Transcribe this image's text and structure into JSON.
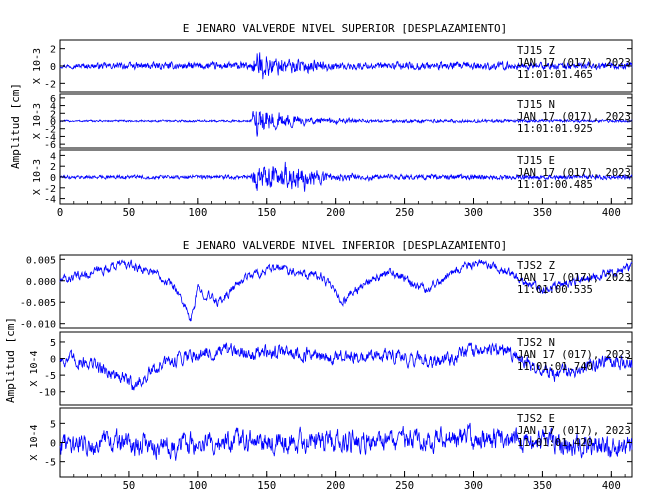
{
  "figure_top": {
    "title": "E JENARO VALVERDE NIVEL SUPERIOR [DESPLAZAMIENTO]",
    "ylabel": "Amplitud [cm]"
  },
  "figure_bottom": {
    "title": "E JENARO VALVERDE NIVEL INFERIOR [DESPLAZAMIENTO]",
    "ylabel": "Amplitud [cm]"
  },
  "chart_data": [
    {
      "type": "line",
      "title": "E JENARO VALVERDE NIVEL SUPERIOR [DESPLAZAMIENTO]",
      "ylabel": "Amplitud [cm]",
      "xlim": [
        0,
        415
      ],
      "x_ticks": [
        "0",
        "50",
        "100",
        "150",
        "200",
        "250",
        "300",
        "350",
        "400"
      ],
      "line_color": "#0000ff",
      "grid": false,
      "panels": [
        {
          "scale_label": "X 10-3",
          "station": "TJ15   Z",
          "date": "JAN 17 (017), 2023",
          "time": "11:01:01.465",
          "ylim": [
            -3,
            3
          ],
          "y_ticks": [
            "2",
            "0",
            "-2"
          ],
          "envelope": [
            {
              "t": 0,
              "amp": 0.3
            },
            {
              "t": 40,
              "amp": 0.5
            },
            {
              "t": 138,
              "amp": 0.6
            },
            {
              "t": 142,
              "amp": 2.5
            },
            {
              "t": 160,
              "amp": 1.6
            },
            {
              "t": 200,
              "amp": 0.7
            },
            {
              "t": 260,
              "amp": 0.6
            },
            {
              "t": 415,
              "amp": 0.5
            }
          ]
        },
        {
          "scale_label": "X 10-3",
          "station": "TJ15   N",
          "date": "JAN 17 (017), 2023",
          "time": "11:01:01.925",
          "ylim": [
            -7,
            7
          ],
          "y_ticks": [
            "6",
            "4",
            "2",
            "0",
            "-2",
            "-4",
            "-6"
          ],
          "envelope": [
            {
              "t": 0,
              "amp": 0.3
            },
            {
              "t": 138,
              "amp": 0.4
            },
            {
              "t": 142,
              "amp": 6.5
            },
            {
              "t": 155,
              "amp": 3.5
            },
            {
              "t": 180,
              "amp": 1.5
            },
            {
              "t": 230,
              "amp": 0.6
            },
            {
              "t": 415,
              "amp": 0.4
            }
          ]
        },
        {
          "scale_label": "X 10-3",
          "station": "TJ15   E",
          "date": "JAN 17 (017), 2023",
          "time": "11:01:00.485",
          "ylim": [
            -5,
            5
          ],
          "y_ticks": [
            "4",
            "2",
            "0",
            "-2",
            "-4"
          ],
          "envelope": [
            {
              "t": 0,
              "amp": 0.4
            },
            {
              "t": 138,
              "amp": 0.5
            },
            {
              "t": 142,
              "amp": 4.5
            },
            {
              "t": 175,
              "amp": 3.5
            },
            {
              "t": 200,
              "amp": 1.2
            },
            {
              "t": 240,
              "amp": 0.7
            },
            {
              "t": 415,
              "amp": 0.5
            }
          ]
        }
      ]
    },
    {
      "type": "line",
      "title": "E JENARO VALVERDE NIVEL INFERIOR [DESPLAZAMIENTO]",
      "ylabel": "Amplitud [cm]",
      "xlim": [
        0,
        415
      ],
      "x_ticks": [
        "50",
        "100",
        "150",
        "200",
        "250",
        "300",
        "350",
        "400"
      ],
      "line_color": "#0000ff",
      "grid": false,
      "panels": [
        {
          "scale_label": "",
          "station": "TJS2   Z",
          "date": "JAN 17 (017), 2023",
          "time": "11:01:00.535",
          "ylim": [
            -0.011,
            0.006
          ],
          "y_ticks": [
            "0.005",
            "0.000",
            "-0.005",
            "-0.010"
          ],
          "baseline": [
            {
              "t": 0,
              "v": 0.0
            },
            {
              "t": 25,
              "v": 0.002
            },
            {
              "t": 45,
              "v": 0.004
            },
            {
              "t": 70,
              "v": 0.002
            },
            {
              "t": 85,
              "v": -0.002
            },
            {
              "t": 95,
              "v": -0.0095
            },
            {
              "t": 100,
              "v": -0.002
            },
            {
              "t": 115,
              "v": -0.005
            },
            {
              "t": 135,
              "v": 0.001
            },
            {
              "t": 160,
              "v": 0.003
            },
            {
              "t": 190,
              "v": 0.001
            },
            {
              "t": 205,
              "v": -0.005
            },
            {
              "t": 215,
              "v": -0.002
            },
            {
              "t": 240,
              "v": 0.002
            },
            {
              "t": 265,
              "v": -0.002
            },
            {
              "t": 290,
              "v": 0.003
            },
            {
              "t": 310,
              "v": 0.004
            },
            {
              "t": 330,
              "v": 0.001
            },
            {
              "t": 350,
              "v": -0.002
            },
            {
              "t": 375,
              "v": 0.0
            },
            {
              "t": 400,
              "v": 0.002
            },
            {
              "t": 415,
              "v": 0.003
            }
          ],
          "noise": 0.0011
        },
        {
          "scale_label": "X 10-4",
          "station": "TJS2   N",
          "date": "JAN 17 (017), 2023",
          "time": "11:01:01.740",
          "ylim": [
            -14,
            8
          ],
          "y_ticks": [
            "5",
            "0",
            "-5",
            "-10"
          ],
          "baseline": [
            {
              "t": 0,
              "v": 0
            },
            {
              "t": 20,
              "v": -1
            },
            {
              "t": 40,
              "v": -5
            },
            {
              "t": 55,
              "v": -8
            },
            {
              "t": 70,
              "v": -3
            },
            {
              "t": 90,
              "v": 1
            },
            {
              "t": 120,
              "v": 2
            },
            {
              "t": 160,
              "v": 2
            },
            {
              "t": 200,
              "v": 0
            },
            {
              "t": 240,
              "v": 1
            },
            {
              "t": 270,
              "v": -1
            },
            {
              "t": 300,
              "v": 2
            },
            {
              "t": 320,
              "v": 3
            },
            {
              "t": 340,
              "v": -1
            },
            {
              "t": 360,
              "v": -5
            },
            {
              "t": 380,
              "v": -3
            },
            {
              "t": 400,
              "v": 0
            },
            {
              "t": 415,
              "v": -2
            }
          ],
          "noise": 2.2
        },
        {
          "scale_label": "X 10-4",
          "station": "TJS2   E",
          "date": "JAN 17 (017), 2023",
          "time": "11:01:01.420",
          "ylim": [
            -9,
            9
          ],
          "y_ticks": [
            "5",
            "0",
            "-5"
          ],
          "baseline": [
            {
              "t": 0,
              "v": 0
            },
            {
              "t": 40,
              "v": 0
            },
            {
              "t": 80,
              "v": -1
            },
            {
              "t": 120,
              "v": 0
            },
            {
              "t": 200,
              "v": 0
            },
            {
              "t": 300,
              "v": 1
            },
            {
              "t": 360,
              "v": 0
            },
            {
              "t": 415,
              "v": -2
            }
          ],
          "noise": 3.0
        }
      ]
    }
  ]
}
